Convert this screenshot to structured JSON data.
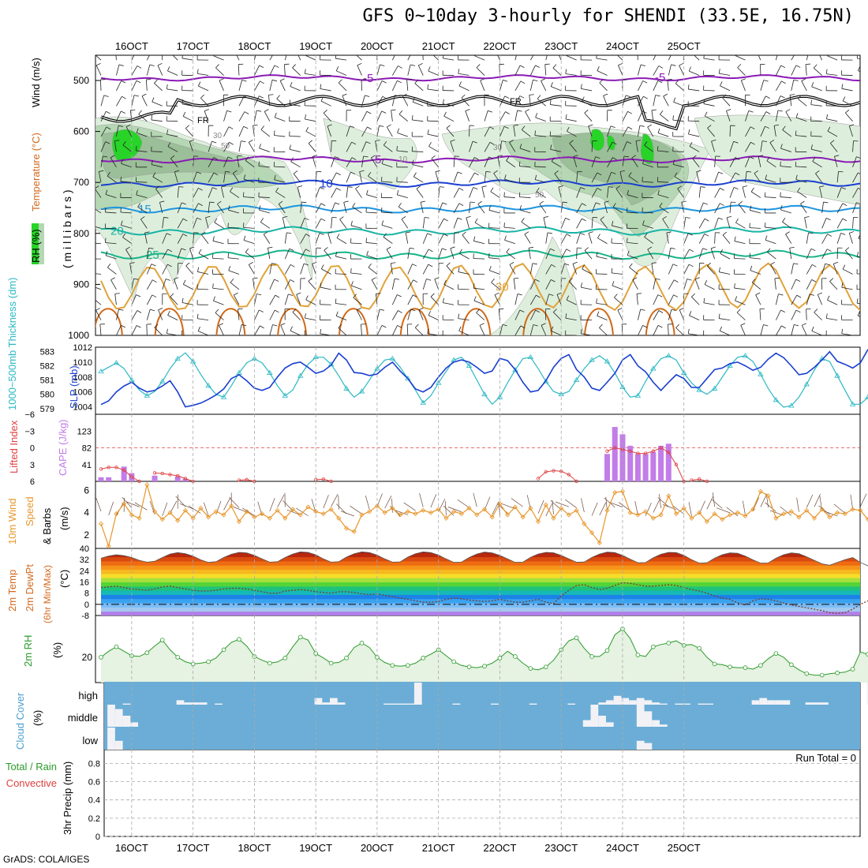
{
  "title": "GFS 0~10day 3-hourly for SHENDI (33.5E, 16.75N)",
  "credit": "GrADS: COLA/IGES",
  "colors": {
    "purple": "#8a1bb5",
    "blue": "#1a3fd0",
    "lightblue": "#1c95e0",
    "teal": "#18b4a4",
    "green_line": "#18b48a",
    "orange": "#e0a23a",
    "darkorange": "#d06a1a",
    "rh_light": "#ddefdc",
    "rh_mid": "#b5d7b3",
    "rh_dark": "#9bbf98",
    "rh_bright": "#27d427",
    "slp": "#1a3fd0",
    "thick": "#2ab8c4",
    "cape": "#c27de8",
    "li": "#e04040",
    "wind": "#e8962a",
    "cloud_bg": "#6badd6"
  },
  "chart_data": [
    {
      "type": "line",
      "panel": "upper-air cross-section",
      "xlabels": [
        "16OCT",
        "17OCT",
        "18OCT",
        "19OCT",
        "20OCT",
        "21OCT",
        "22OCT",
        "23OCT",
        "24OCT",
        "25OCT"
      ],
      "ylabel_parts": [
        "RH (%)",
        "Temperature (°C)",
        "Wind (m/s)"
      ],
      "yunit": "( m i l l i b a r s )",
      "yticks": [
        "500",
        "600",
        "700",
        "800",
        "900",
        "1000"
      ],
      "ylim": [
        1000,
        450
      ],
      "freezing_label": "FR",
      "isotherms": [
        {
          "label": "-5",
          "level": 495
        },
        {
          "label": "-5",
          "level": 655
        },
        {
          "label": "10",
          "level": 702
        },
        {
          "label": "15",
          "level": 752
        },
        {
          "label": "20",
          "level": 795
        },
        {
          "label": "25",
          "level": 842
        },
        {
          "label": "30",
          "level": 905
        }
      ],
      "rh_contour_labels": [
        "30",
        "50",
        "10",
        "30",
        "50"
      ]
    },
    {
      "type": "line",
      "panel": "SLP and thickness",
      "ylabel_left": "1000~500mb Thickness (dm)",
      "ylabel_right": "SLP (mb)",
      "thick_ticks": [
        "583",
        "582",
        "581",
        "580",
        "579"
      ],
      "slp_ticks": [
        "1012",
        "1010",
        "1008",
        "1006",
        "1004"
      ],
      "thick_lim": [
        578.6,
        583.3
      ],
      "slp_lim": [
        1003,
        1012
      ],
      "thickness": [
        581.6,
        581.9,
        582.2,
        581.8,
        581.0,
        580.3,
        579.9,
        580.2,
        580.9,
        581.8,
        582.5,
        582.9,
        582.3,
        581.4,
        580.6,
        580.0,
        579.8,
        580.6,
        581.5,
        582.2,
        582.5,
        582.2,
        581.5,
        580.6,
        579.9,
        580.3,
        581.3,
        582.1,
        582.6,
        582.6,
        582.1,
        581.3,
        580.4,
        579.8,
        580.2,
        581.0,
        581.8,
        582.4,
        582.5,
        581.9,
        581.1,
        580.3,
        579.4,
        579.9,
        580.8,
        581.6,
        582.4,
        582.6,
        582.0,
        581.0,
        580.0,
        579.3,
        579.8,
        580.8,
        581.7,
        582.5,
        582.6,
        581.8,
        580.9,
        580.2,
        580.0,
        580.2,
        581.0,
        581.8,
        582.4,
        582.7,
        582.3,
        581.5,
        580.5,
        579.8,
        579.9,
        580.9,
        581.8,
        582.5,
        582.7,
        582.4,
        581.5,
        580.8,
        580.3,
        580.0,
        580.4,
        581.2,
        582.0,
        582.6,
        582.7,
        582.3,
        581.4,
        580.4,
        579.6,
        579.1,
        579.2,
        579.8,
        580.7,
        581.7,
        582.5,
        582.3,
        581.3,
        580.3,
        579.3,
        579.3,
        579.8
      ],
      "slp": [
        1004.3,
        1004.8,
        1006.0,
        1006.8,
        1007.3,
        1006.5,
        1006.0,
        1006.2,
        1006.8,
        1007.5,
        1006.0,
        1004.0,
        1004.2,
        1004.5,
        1005.0,
        1005.6,
        1006.4,
        1007.8,
        1008.3,
        1007.5,
        1006.5,
        1006.2,
        1006.6,
        1008.0,
        1009.2,
        1009.8,
        1010.0,
        1009.3,
        1008.5,
        1008.8,
        1009.6,
        1011.2,
        1010.3,
        1008.6,
        1008.5,
        1008.2,
        1008.4,
        1009.3,
        1010.0,
        1008.8,
        1007.8,
        1006.4,
        1006.0,
        1006.6,
        1008.0,
        1009.2,
        1010.0,
        1010.3,
        1010.0,
        1009.3,
        1008.5,
        1008.8,
        1010.5,
        1010.2,
        1009.0,
        1007.3,
        1006.0,
        1006.2,
        1007.5,
        1009.3,
        1010.5,
        1011.0,
        1009.0,
        1008.0,
        1006.5,
        1006.2,
        1007.3,
        1008.5,
        1010.3,
        1011.0,
        1009.5,
        1008.7,
        1007.3,
        1006.2,
        1007.3,
        1008.3,
        1007.8,
        1006.6,
        1006.6,
        1007.8,
        1009.0,
        1009.2,
        1009.8,
        1010.0,
        1009.5,
        1008.9,
        1009.3,
        1010.4,
        1011.2,
        1010.6,
        1009.5,
        1008.3,
        1008.5,
        1009.3,
        1010.3,
        1011.4,
        1010.1,
        1009.7,
        1009.2,
        1009.9,
        1011.7
      ]
    },
    {
      "type": "bar",
      "panel": "CAPE and Lifted Index",
      "ylabel_left": "Lifted Index",
      "ylabel_right": "CAPE (J/kg)",
      "li_ticks": [
        "-6",
        "-3",
        "0",
        "3",
        "6"
      ],
      "cape_ticks": [
        "123",
        "82",
        "41"
      ],
      "li_lim": [
        -6,
        6
      ],
      "cape_max": 164,
      "cape_segments": [
        {
          "start": 0,
          "values": [
            10,
            10,
            0,
            36,
            20
          ]
        },
        {
          "start": 7,
          "values": [
            14,
            0,
            0,
            12,
            6
          ]
        },
        {
          "start": 66,
          "values": [
            67,
            133,
            115,
            87,
            67,
            67,
            72,
            87,
            92
          ]
        }
      ],
      "li_segments": [
        {
          "start": 0,
          "values": [
            3.8,
            3.5,
            3.5,
            4.0,
            5.2,
            6.0
          ]
        },
        {
          "start": 7,
          "values": [
            4.5,
            4.6,
            4.8,
            5.0,
            5.5,
            6.0
          ]
        },
        {
          "start": 18,
          "values": [
            5.8,
            5.7,
            6.0
          ]
        },
        {
          "start": 28,
          "values": [
            5.7,
            5.6,
            6.0
          ]
        },
        {
          "start": 57,
          "values": [
            5.5,
            4.3,
            4.1,
            4.2,
            4.8,
            6.0
          ]
        },
        {
          "start": 66,
          "values": [
            0.6,
            0.0,
            0.3,
            0.6,
            1.0,
            1.0,
            0.6,
            0.0,
            0.8,
            3.0,
            6.0
          ]
        },
        {
          "start": 77,
          "values": [
            5.8,
            5.6,
            6.0
          ]
        }
      ]
    },
    {
      "type": "line",
      "panel": "10m wind",
      "ylabel_parts": [
        "10m Wind",
        "Speed",
        "& Barbs",
        "(m/s)"
      ],
      "yticks": [
        "6",
        "4",
        "2"
      ],
      "ylim": [
        0.8,
        6.8
      ],
      "speed": [
        3.0,
        1.0,
        3.9,
        4.8,
        3.8,
        3.5,
        6.5,
        4.1,
        3.4,
        4.0,
        3.3,
        4.2,
        3.5,
        4.4,
        3.6,
        4.1,
        3.8,
        4.6,
        3.2,
        4.1,
        3.6,
        3.9,
        3.5,
        4.2,
        3.5,
        4.3,
        3.8,
        4.5,
        4.1,
        3.9,
        4.3,
        3.5,
        2.6,
        2.3,
        3.8,
        4.1,
        4.6,
        4.0,
        4.4,
        3.8,
        4.1,
        3.9,
        4.2,
        4.0,
        4.3,
        3.5,
        4.1,
        3.9,
        4.4,
        3.8,
        4.3,
        3.6,
        4.8,
        3.8,
        4.5,
        3.6,
        4.4,
        3.2,
        4.7,
        3.5,
        4.4,
        3.8,
        4.2,
        3.0,
        2.2,
        1.3,
        4.2,
        5.8,
        5.9,
        4.0,
        3.8,
        4.1,
        3.5,
        3.8,
        5.5,
        3.9,
        4.4,
        3.5,
        4.0,
        3.2,
        3.9,
        3.4,
        3.8,
        4.0,
        3.7,
        4.3,
        5.9,
        5.5,
        3.5,
        3.9,
        4.1,
        3.6,
        4.2,
        3.5,
        4.3,
        3.6,
        4.0,
        3.9,
        4.3,
        4.2,
        3.4
      ]
    },
    {
      "type": "area",
      "panel": "2m temperature and dewpoint",
      "ylabel_parts": [
        "2m Temp",
        "2m DewPt",
        "(6hr Min/Max)",
        "(°C)"
      ],
      "yticks": [
        "40",
        "32",
        "24",
        "16",
        "8",
        "0",
        "-8"
      ],
      "ylim": [
        -8,
        40
      ],
      "temp": [
        33.0,
        34.5,
        35.5,
        34.8,
        33.5,
        31.5,
        30.2,
        30.8,
        33.5,
        36.0,
        37.0,
        36.2,
        34.5,
        31.8,
        30.0,
        30.5,
        33.5,
        35.8,
        37.2,
        36.8,
        35.0,
        32.5,
        30.2,
        30.5,
        33.5,
        36.0,
        37.5,
        37.2,
        35.4,
        32.5,
        30.2,
        30.5,
        33.8,
        36.2,
        37.5,
        37.0,
        35.2,
        32.5,
        30.2,
        30.4,
        33.8,
        36.2,
        37.5,
        37.0,
        35.2,
        32.5,
        30.0,
        30.2,
        33.5,
        36.0,
        37.4,
        36.8,
        35.0,
        32.5,
        30.0,
        30.2,
        33.6,
        36.0,
        37.2,
        36.9,
        35.0,
        32.5,
        30.1,
        30.3,
        33.6,
        36.0,
        37.4,
        37.0,
        35.0,
        32.3,
        29.8,
        29.9,
        33.3,
        35.8,
        37.2,
        37.0,
        35.0,
        32.0,
        29.5,
        29.7,
        33.0,
        35.5,
        36.8,
        36.5,
        34.5,
        31.8,
        29.5,
        29.6,
        33.0,
        35.5,
        36.8,
        36.2,
        34.0,
        31.5,
        29.0,
        28.0,
        30.0,
        32.0,
        33.5,
        30.0,
        27.5
      ],
      "dewpoint": [
        12.0,
        12.5,
        13.0,
        12.0,
        11.0,
        10.5,
        10.0,
        11.0,
        12.5,
        13.0,
        12.0,
        11.0,
        10.0,
        9.5,
        9.5,
        10.0,
        11.0,
        11.5,
        11.5,
        11.0,
        10.0,
        9.0,
        8.0,
        8.0,
        9.5,
        10.0,
        10.5,
        10.0,
        9.0,
        8.5,
        8.0,
        9.0,
        9.0,
        8.5,
        7.5,
        7.0,
        7.5,
        6.5,
        5.5,
        4.5,
        3.5,
        2.5,
        1.5,
        1.5,
        2.0,
        3.5,
        4.5,
        4.0,
        3.0,
        2.5,
        2.0,
        2.5,
        3.5,
        2.5,
        1.5,
        1.5,
        2.5,
        3.5,
        1.5,
        0.5,
        6.0,
        10.0,
        13.5,
        14.0,
        12.0,
        10.5,
        11.5,
        13.5,
        15.5,
        15.0,
        14.0,
        13.0,
        13.0,
        13.5,
        14.0,
        13.5,
        12.0,
        10.5,
        9.5,
        8.0,
        6.0,
        4.5,
        3.5,
        1.0,
        -0.5,
        2.5,
        4.0,
        3.5,
        2.5,
        1.0,
        -0.5,
        -1.5,
        -2.5,
        -3.5,
        -4.5,
        -6.0,
        -6.5,
        -6.0,
        -3.5,
        0.0,
        2.5
      ],
      "band_colors": [
        "#b07fe8",
        "#a2c8f0",
        "#7bbcf7",
        "#3aa3f0",
        "#1d82e8",
        "#16b8b8",
        "#1ec27a",
        "#55d438",
        "#a6e03a",
        "#f5dd2a",
        "#f7b820",
        "#f59418",
        "#ee6b12",
        "#d84a10",
        "#b8280e",
        "#8c1a1a"
      ]
    },
    {
      "type": "area",
      "panel": "2m relative humidity",
      "ylabel_left": "2m RH",
      "yunit": "(%)",
      "yticks": [
        "20"
      ],
      "ylim": [
        3,
        48
      ],
      "rh": [
        20.0,
        24.0,
        27.0,
        24.0,
        21.0,
        20.5,
        23.0,
        27.5,
        31.5,
        25.0,
        20.0,
        17.0,
        15.5,
        16.0,
        17.0,
        19.5,
        25.0,
        30.0,
        32.0,
        27.5,
        20.5,
        18.0,
        16.0,
        16.8,
        19.5,
        27.0,
        33.5,
        31.5,
        22.5,
        19.5,
        16.0,
        16.5,
        19.5,
        26.5,
        29.5,
        26.5,
        20.0,
        16.5,
        14.5,
        14.0,
        14.5,
        16.0,
        19.5,
        22.0,
        25.0,
        21.0,
        17.0,
        14.5,
        13.5,
        13.0,
        14.0,
        16.0,
        19.5,
        24.0,
        20.5,
        16.0,
        12.5,
        11.5,
        13.5,
        18.0,
        25.0,
        31.0,
        33.0,
        26.0,
        20.5,
        20.5,
        24.5,
        35.0,
        39.0,
        32.5,
        21.5,
        20.5,
        27.0,
        28.5,
        29.5,
        31.0,
        28.0,
        28.5,
        26.0,
        20.0,
        15.5,
        15.0,
        13.5,
        13.0,
        13.0,
        12.0,
        14.5,
        19.0,
        22.5,
        20.0,
        15.0,
        11.5,
        9.0,
        8.0,
        8.0,
        9.0,
        9.5,
        10.0,
        12.0,
        23.5,
        22.0
      ]
    },
    {
      "type": "bar",
      "panel": "cloud cover",
      "ylabel_parts": [
        "Cloud Cover",
        "(%)"
      ],
      "levels": [
        "high",
        "middle",
        "low"
      ],
      "high": [
        {
          "t": 2,
          "v": 5
        },
        {
          "t": 9,
          "v": 20
        },
        {
          "t": 10,
          "v": 10
        },
        {
          "t": 11,
          "v": 10
        },
        {
          "t": 12,
          "v": 10
        },
        {
          "t": 14,
          "v": 5
        },
        {
          "t": 27,
          "v": 30
        },
        {
          "t": 28,
          "v": 10
        },
        {
          "t": 29,
          "v": 30
        },
        {
          "t": 30,
          "v": 10
        },
        {
          "t": 36,
          "v": 5
        },
        {
          "t": 37,
          "v": 5
        },
        {
          "t": 38,
          "v": 5
        },
        {
          "t": 39,
          "v": 5
        },
        {
          "t": 40,
          "v": 100
        },
        {
          "t": 45,
          "v": 5
        },
        {
          "t": 50,
          "v": 5
        },
        {
          "t": 55,
          "v": 5
        },
        {
          "t": 60,
          "v": 5
        },
        {
          "t": 64,
          "v": 10
        },
        {
          "t": 65,
          "v": 20
        },
        {
          "t": 66,
          "v": 40
        },
        {
          "t": 67,
          "v": 30
        },
        {
          "t": 68,
          "v": 20
        },
        {
          "t": 69,
          "v": 30
        },
        {
          "t": 70,
          "v": 20
        },
        {
          "t": 71,
          "v": 10
        },
        {
          "t": 72,
          "v": 5
        },
        {
          "t": 74,
          "v": 5
        },
        {
          "t": 75,
          "v": 5
        },
        {
          "t": 77,
          "v": 5
        },
        {
          "t": 78,
          "v": 5
        },
        {
          "t": 84,
          "v": 20
        },
        {
          "t": 85,
          "v": 30
        },
        {
          "t": 86,
          "v": 20
        },
        {
          "t": 87,
          "v": 20
        },
        {
          "t": 88,
          "v": 20
        },
        {
          "t": 91,
          "v": 10
        },
        {
          "t": 92,
          "v": 10
        },
        {
          "t": 93,
          "v": 10
        },
        {
          "t": 99,
          "v": 100
        }
      ],
      "middle": [
        {
          "t": 0,
          "v": 100
        },
        {
          "t": 1,
          "v": 80
        },
        {
          "t": 2,
          "v": 50
        },
        {
          "t": 3,
          "v": 20
        },
        {
          "t": 62,
          "v": 30
        },
        {
          "t": 63,
          "v": 100
        },
        {
          "t": 64,
          "v": 50
        },
        {
          "t": 65,
          "v": 20
        },
        {
          "t": 69,
          "v": 100
        },
        {
          "t": 70,
          "v": 70
        },
        {
          "t": 71,
          "v": 30
        },
        {
          "t": 72,
          "v": 10
        }
      ],
      "low": [
        {
          "t": 0,
          "v": 100
        },
        {
          "t": 1,
          "v": 40
        },
        {
          "t": 69,
          "v": 40
        },
        {
          "t": 70,
          "v": 30
        }
      ]
    },
    {
      "type": "bar",
      "panel": "precipitation",
      "ylabel_left": "Total / Rain",
      "ylabel_left2": "Convective",
      "ylabel_right": "3hr Precip (mm)",
      "yticks": [
        "0.8",
        "0.6",
        "0.4",
        "0.2",
        "0"
      ],
      "ylim": [
        0,
        0.95
      ],
      "run_total": "Run Total = 0",
      "values": []
    }
  ]
}
